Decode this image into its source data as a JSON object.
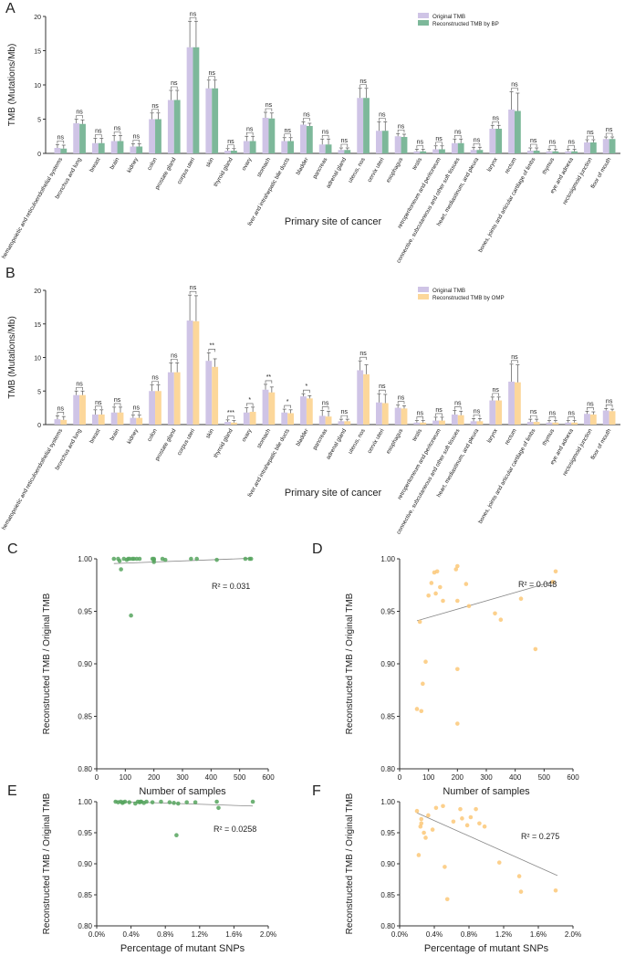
{
  "colors": {
    "original": "#cfc4e6",
    "bp": "#7db89a",
    "omp": "#fcd79a",
    "scatter_bp": "#56a55e",
    "scatter_omp": "#fbc878",
    "axis": "#333333",
    "trend": "#888888"
  },
  "chart_data": [
    {
      "panel": "A",
      "type": "bar",
      "title": "",
      "xlabel": "Primary site of cancer",
      "ylabel": "TMB (Mutations/Mb)",
      "ylim": [
        0,
        20
      ],
      "yticks": [
        "0",
        "5",
        "10",
        "15",
        "20"
      ],
      "categories": [
        "hematopoietic and reticuloendothelial systems",
        "bronchus and lung",
        "breast",
        "brain",
        "kidney",
        "colon",
        "prostate gland",
        "corpus uteri",
        "skin",
        "thyroid gland",
        "ovary",
        "stomach",
        "liver and intrahepatic bile ducts",
        "bladder",
        "pancreas",
        "adrenal gland",
        "uterus, nos",
        "cervix uteri",
        "esophagus",
        "testis",
        "retroperitoneum and peritoneum",
        "connective, subcutaneous and other soft tissues",
        "heart, mediastinum, and pleura",
        "larynx",
        "rectum",
        "bones, joints and articular cartilage of limbs",
        "thymus",
        "eye and adnexa",
        "rectosigmoid junction",
        "floor of mouth"
      ],
      "series": [
        {
          "name": "Original TMB",
          "values": [
            0.8,
            4.4,
            1.5,
            1.8,
            1.0,
            5.0,
            7.8,
            15.5,
            9.5,
            0.4,
            1.8,
            5.2,
            1.8,
            4.2,
            1.3,
            0.5,
            8.1,
            3.3,
            2.5,
            0.3,
            0.6,
            1.5,
            0.5,
            3.6,
            6.4,
            0.4,
            0.3,
            0.3,
            1.6,
            2.1
          ],
          "errors": [
            0.5,
            0.6,
            0.7,
            0.8,
            0.4,
            0.9,
            1.4,
            3.8,
            1.2,
            0.3,
            0.7,
            0.8,
            0.5,
            0.4,
            0.8,
            0.3,
            1.4,
            1.3,
            0.4,
            0.3,
            0.5,
            0.6,
            0.4,
            0.5,
            2.6,
            0.4,
            0.3,
            0.3,
            0.4,
            0.3
          ]
        },
        {
          "name": "Reconstructed TMB by BP",
          "values": [
            0.7,
            4.3,
            1.5,
            1.8,
            1.0,
            5.0,
            7.8,
            15.5,
            9.5,
            0.4,
            1.8,
            5.1,
            1.8,
            4.0,
            1.3,
            0.5,
            8.1,
            3.3,
            2.4,
            0.3,
            0.6,
            1.5,
            0.5,
            3.6,
            6.2,
            0.4,
            0.3,
            0.3,
            1.6,
            2.1
          ],
          "errors": [
            0.5,
            0.6,
            0.7,
            0.8,
            0.4,
            0.9,
            1.4,
            3.8,
            1.2,
            0.3,
            0.7,
            0.8,
            0.5,
            0.4,
            0.8,
            0.3,
            1.4,
            1.3,
            0.4,
            0.3,
            0.5,
            0.6,
            0.4,
            0.5,
            2.6,
            0.4,
            0.3,
            0.3,
            0.4,
            0.3
          ]
        }
      ],
      "significance": [
        "ns",
        "ns",
        "ns",
        "ns",
        "ns",
        "ns",
        "ns",
        "ns",
        "ns",
        "ns",
        "ns",
        "ns",
        "ns",
        "ns",
        "ns",
        "ns",
        "ns",
        "ns",
        "ns",
        "ns",
        "ns",
        "ns",
        "ns",
        "ns",
        "ns",
        "ns",
        "ns",
        "ns",
        "ns",
        "ns"
      ],
      "legend": "top-right"
    },
    {
      "panel": "B",
      "type": "bar",
      "title": "",
      "xlabel": "Primary site of cancer",
      "ylabel": "TMB (Mutations/Mb)",
      "ylim": [
        0,
        20
      ],
      "yticks": [
        "0",
        "5",
        "10",
        "15",
        "20"
      ],
      "categories": [
        "hematopoietic and reticuloendothelial systems",
        "bronchus and lung",
        "breast",
        "brain",
        "kidney",
        "colon",
        "prostate gland",
        "corpus uteri",
        "skin",
        "thyroid gland",
        "ovary",
        "stomach",
        "liver and intrahepatic bile ducts",
        "bladder",
        "pancreas",
        "adrenal gland",
        "uterus, nos",
        "cervix uteri",
        "esophagus",
        "testis",
        "retroperitoneum and peritoneum",
        "connective, subcutaneous and other soft tissues",
        "heart, mediastinum, and pleura",
        "larynx",
        "rectum",
        "bones, joints and articular cartilage of limbs",
        "thymus",
        "eye and adnexa",
        "rectosigmoid junction",
        "floor of mouth"
      ],
      "series": [
        {
          "name": "Original TMB",
          "values": [
            0.8,
            4.4,
            1.5,
            1.8,
            1.0,
            5.0,
            7.8,
            15.5,
            9.5,
            0.4,
            1.8,
            5.2,
            1.8,
            4.2,
            1.3,
            0.5,
            8.1,
            3.3,
            2.5,
            0.3,
            0.6,
            1.5,
            0.5,
            3.6,
            6.4,
            0.4,
            0.3,
            0.3,
            1.6,
            2.1
          ],
          "errors": [
            0.5,
            0.6,
            0.7,
            0.8,
            0.4,
            0.9,
            1.4,
            3.8,
            1.2,
            0.3,
            0.7,
            0.8,
            0.5,
            0.4,
            0.8,
            0.3,
            1.4,
            1.3,
            0.4,
            0.3,
            0.5,
            0.6,
            0.4,
            0.5,
            2.6,
            0.4,
            0.3,
            0.3,
            0.4,
            0.3
          ]
        },
        {
          "name": "Reconstructed TMB by OMP",
          "values": [
            0.7,
            4.4,
            1.5,
            1.8,
            1.0,
            5.0,
            7.8,
            15.4,
            8.6,
            0.3,
            1.9,
            4.8,
            1.7,
            3.9,
            1.2,
            0.5,
            7.5,
            3.2,
            2.4,
            0.3,
            0.6,
            1.4,
            0.5,
            3.6,
            6.3,
            0.4,
            0.3,
            0.3,
            1.5,
            2.0
          ],
          "errors": [
            0.5,
            0.6,
            0.7,
            0.8,
            0.4,
            0.9,
            1.4,
            3.8,
            1.2,
            0.3,
            0.7,
            0.8,
            0.5,
            0.4,
            0.8,
            0.3,
            1.4,
            1.3,
            0.4,
            0.3,
            0.5,
            0.6,
            0.4,
            0.5,
            2.6,
            0.4,
            0.3,
            0.3,
            0.4,
            0.3
          ]
        }
      ],
      "significance": [
        "ns",
        "ns",
        "ns",
        "ns",
        "ns",
        "ns",
        "ns",
        "ns",
        "**",
        "***",
        "*",
        "**",
        "*",
        "*",
        "ns",
        "ns",
        "ns",
        "ns",
        "ns",
        "ns",
        "ns",
        "ns",
        "ns",
        "ns",
        "ns",
        "ns",
        "ns",
        "ns",
        "ns",
        "ns"
      ],
      "legend": "top-right"
    },
    {
      "panel": "C",
      "type": "scatter",
      "xlabel": "Number of samples",
      "ylabel": "Reconstructed TMB / Original TMB",
      "xlim": [
        0,
        600
      ],
      "ylim": [
        0.8,
        1.0
      ],
      "xticks": [
        "0",
        "100",
        "200",
        "300",
        "400",
        "500",
        "600"
      ],
      "yticks": [
        "0.80",
        "0.85",
        "0.90",
        "0.95",
        "1.00"
      ],
      "x": [
        60,
        75,
        80,
        95,
        105,
        110,
        115,
        125,
        130,
        140,
        150,
        195,
        200,
        200,
        200,
        230,
        240,
        330,
        350,
        420,
        520,
        535,
        540,
        85,
        120
      ],
      "y": [
        1.0,
        1.0,
        0.998,
        1.0,
        0.999,
        1.0,
        1.0,
        1.0,
        1.0,
        1.0,
        1.0,
        1.0,
        0.999,
        0.997,
        1.0,
        1.0,
        0.999,
        1.0,
        1.0,
        0.999,
        1.0,
        1.0,
        1.0,
        0.99,
        0.946
      ],
      "trend": {
        "x": [
          60,
          540
        ],
        "y": [
          0.9955,
          1.0005
        ]
      },
      "annotation": "R² = 0.031"
    },
    {
      "panel": "D",
      "type": "scatter",
      "xlabel": "Number of samples",
      "ylabel": "Reconstructed TMB / Original TMB",
      "xlim": [
        0,
        600
      ],
      "ylim": [
        0.8,
        1.0
      ],
      "xticks": [
        "0",
        "100",
        "200",
        "300",
        "400",
        "500",
        "600"
      ],
      "yticks": [
        "0.80",
        "0.85",
        "0.90",
        "0.95",
        "1.00"
      ],
      "x": [
        60,
        75,
        80,
        90,
        100,
        110,
        120,
        125,
        130,
        140,
        150,
        195,
        200,
        200,
        200,
        230,
        240,
        330,
        350,
        420,
        470,
        530,
        540,
        200,
        70
      ],
      "y": [
        0.857,
        0.855,
        0.881,
        0.902,
        0.965,
        0.977,
        0.987,
        0.967,
        0.988,
        0.973,
        0.96,
        0.99,
        0.993,
        0.96,
        0.895,
        0.976,
        0.955,
        0.948,
        0.942,
        0.962,
        0.914,
        0.978,
        0.988,
        0.843,
        0.94
      ],
      "trend": {
        "x": [
          60,
          540
        ],
        "y": [
          0.941,
          0.979
        ]
      },
      "annotation": "R² = 0.048"
    },
    {
      "panel": "E",
      "type": "scatter",
      "xlabel": "Percentage of mutant SNPs",
      "ylabel": "Reconstructed TMB / Original TMB",
      "xlim": [
        0.0,
        2.0
      ],
      "ylim": [
        0.8,
        1.0
      ],
      "xticks": [
        "0.0%",
        "0.4%",
        "0.8%",
        "1.2%",
        "1.6%",
        "2.0%"
      ],
      "yticks": [
        "0.80",
        "0.85",
        "0.90",
        "0.95",
        "1.00"
      ],
      "x": [
        0.22,
        0.25,
        0.28,
        0.3,
        0.33,
        0.38,
        0.45,
        0.48,
        0.5,
        0.52,
        0.55,
        0.58,
        0.65,
        0.75,
        0.85,
        0.9,
        0.95,
        1.05,
        1.15,
        1.4,
        1.42,
        1.82,
        0.93,
        0.31,
        0.51
      ],
      "y": [
        1.0,
        0.999,
        1.0,
        0.998,
        1.0,
        0.999,
        0.997,
        1.0,
        0.999,
        1.0,
        0.998,
        1.0,
        0.999,
        1.0,
        0.999,
        0.998,
        0.997,
        0.999,
        0.999,
        1.0,
        0.99,
        1.0,
        0.946,
        0.999,
        1.0
      ],
      "trend": {
        "x": [
          0.2,
          1.82
        ],
        "y": [
          1.0005,
          0.993
        ]
      },
      "annotation": "R² = 0.0258"
    },
    {
      "panel": "F",
      "type": "scatter",
      "xlabel": "Percentage of mutant SNPs",
      "ylabel": "Reconstructed TMB / Original TMB",
      "xlim": [
        0.0,
        2.0
      ],
      "ylim": [
        0.8,
        1.0
      ],
      "xticks": [
        "0.0%",
        "0.4%",
        "0.8%",
        "1.2%",
        "1.6%",
        "2.0%"
      ],
      "yticks": [
        "0.80",
        "0.85",
        "0.90",
        "0.95",
        "1.00"
      ],
      "x": [
        0.2,
        0.22,
        0.24,
        0.25,
        0.28,
        0.3,
        0.33,
        0.38,
        0.42,
        0.5,
        0.52,
        0.55,
        0.62,
        0.7,
        0.72,
        0.78,
        0.82,
        0.88,
        0.92,
        0.98,
        1.15,
        1.38,
        1.4,
        1.8,
        0.25
      ],
      "y": [
        0.985,
        0.914,
        0.96,
        0.972,
        0.95,
        0.942,
        0.978,
        0.955,
        0.99,
        0.993,
        0.895,
        0.843,
        0.968,
        0.988,
        0.973,
        0.962,
        0.975,
        0.988,
        0.965,
        0.96,
        0.902,
        0.88,
        0.855,
        0.857,
        0.965
      ],
      "trend": {
        "x": [
          0.2,
          1.82
        ],
        "y": [
          0.982,
          0.881
        ]
      },
      "annotation": "R² = 0.275"
    }
  ]
}
